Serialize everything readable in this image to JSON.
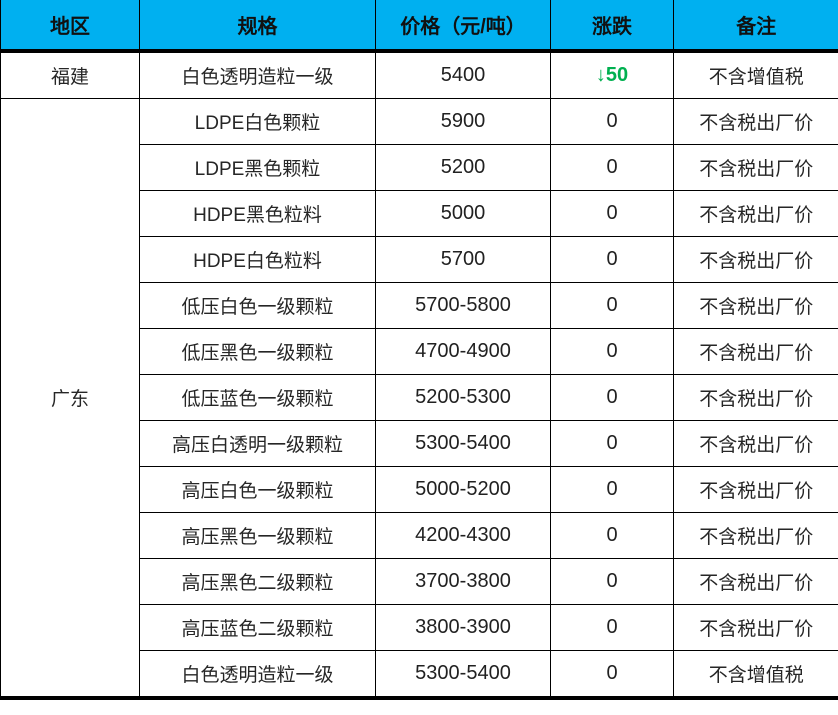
{
  "table": {
    "header": {
      "columns": [
        "地区",
        "规格",
        "价格（元/吨）",
        "涨跌",
        "备注"
      ]
    },
    "regions": [
      {
        "name": "福建",
        "rows": [
          {
            "spec": "白色透明造粒一级",
            "price": "5400",
            "change": "↓50",
            "change_direction": "down",
            "note": "不含增值税"
          }
        ]
      },
      {
        "name": "广东",
        "rows": [
          {
            "spec": "LDPE白色颗粒",
            "price": "5900",
            "change": "0",
            "change_direction": "flat",
            "note": "不含税出厂价"
          },
          {
            "spec": "LDPE黑色颗粒",
            "price": "5200",
            "change": "0",
            "change_direction": "flat",
            "note": "不含税出厂价"
          },
          {
            "spec": "HDPE黑色粒料",
            "price": "5000",
            "change": "0",
            "change_direction": "flat",
            "note": "不含税出厂价"
          },
          {
            "spec": "HDPE白色粒料",
            "price": "5700",
            "change": "0",
            "change_direction": "flat",
            "note": "不含税出厂价"
          },
          {
            "spec": "低压白色一级颗粒",
            "price": "5700-5800",
            "change": "0",
            "change_direction": "flat",
            "note": "不含税出厂价"
          },
          {
            "spec": "低压黑色一级颗粒",
            "price": "4700-4900",
            "change": "0",
            "change_direction": "flat",
            "note": "不含税出厂价"
          },
          {
            "spec": "低压蓝色一级颗粒",
            "price": "5200-5300",
            "change": "0",
            "change_direction": "flat",
            "note": "不含税出厂价"
          },
          {
            "spec": "高压白透明一级颗粒",
            "price": "5300-5400",
            "change": "0",
            "change_direction": "flat",
            "note": "不含税出厂价"
          },
          {
            "spec": "高压白色一级颗粒",
            "price": "5000-5200",
            "change": "0",
            "change_direction": "flat",
            "note": "不含税出厂价"
          },
          {
            "spec": "高压黑色一级颗粒",
            "price": "4200-4300",
            "change": "0",
            "change_direction": "flat",
            "note": "不含税出厂价"
          },
          {
            "spec": "高压黑色二级颗粒",
            "price": "3700-3800",
            "change": "0",
            "change_direction": "flat",
            "note": "不含税出厂价"
          },
          {
            "spec": "高压蓝色二级颗粒",
            "price": "3800-3900",
            "change": "0",
            "change_direction": "flat",
            "note": "不含税出厂价"
          },
          {
            "spec": "白色透明造粒一级",
            "price": "5300-5400",
            "change": "0",
            "change_direction": "flat",
            "note": "不含增值税"
          }
        ]
      }
    ]
  },
  "colors": {
    "header_bg": "#00b0f0",
    "header_text": "#111111",
    "body_text": "#262626",
    "decrease_green": "#00b050",
    "border": "#000000"
  }
}
